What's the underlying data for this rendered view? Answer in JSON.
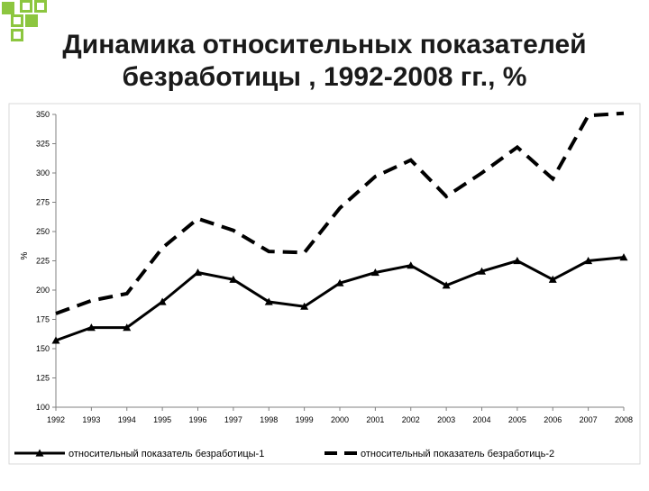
{
  "slide": {
    "title_line1": "Динамика относительных показателей",
    "title_line2": "безработицы , 1992-2008 гг., %"
  },
  "colors": {
    "accent": "#8cc63f",
    "series": "#000000"
  },
  "chart_data": {
    "type": "line",
    "title": "Динамика относительных показателей безработицы , 1992-2008 гг., %",
    "xlabel": "",
    "ylabel": "%",
    "x": [
      "1992",
      "1993",
      "1994",
      "1995",
      "1996",
      "1997",
      "1998",
      "1999",
      "2000",
      "2001",
      "2002",
      "2003",
      "2004",
      "2005",
      "2006",
      "2007",
      "2008"
    ],
    "ylim": [
      100,
      350
    ],
    "yticks": [
      100,
      125,
      150,
      175,
      200,
      225,
      250,
      275,
      300,
      325,
      350
    ],
    "grid": false,
    "legend": "bottom",
    "series": [
      {
        "name": "относительный показатель безработицы-1",
        "style": "solid-triangle",
        "values": [
          157,
          168,
          168,
          190,
          215,
          209,
          190,
          186,
          206,
          215,
          221,
          204,
          216,
          225,
          209,
          225,
          228
        ]
      },
      {
        "name": "относительный показатель безработиць-2",
        "style": "dashed",
        "values": [
          180,
          191,
          197,
          236,
          261,
          251,
          233,
          232,
          270,
          297,
          311,
          280,
          300,
          322,
          295,
          349,
          351
        ]
      }
    ]
  }
}
